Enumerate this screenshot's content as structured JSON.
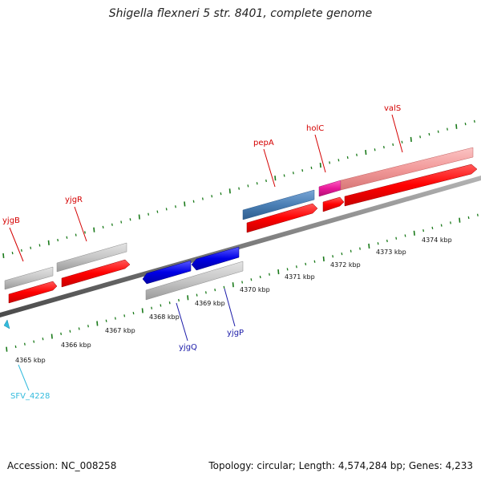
{
  "title": "Shigella flexneri 5 str. 8401, complete genome",
  "footer": {
    "accession": "Accession: NC_008258",
    "summary": "Topology: circular; Length: 4,574,284 bp; Genes: 4,233"
  },
  "axis": {
    "ticks": [
      "4365 kbp",
      "4366 kbp",
      "4367 kbp",
      "4368 kbp",
      "4369 kbp",
      "4370 kbp",
      "4371 kbp",
      "4372 kbp",
      "4373 kbp",
      "4374 kbp"
    ]
  },
  "genes": [
    {
      "name": "yjgB",
      "color": "#d40000"
    },
    {
      "name": "yjgR",
      "color": "#d40000"
    },
    {
      "name": "pepA",
      "color": "#d40000"
    },
    {
      "name": "holC",
      "color": "#d40000"
    },
    {
      "name": "valS",
      "color": "#d40000"
    },
    {
      "name": "yjgQ",
      "color": "#1a1aa8"
    },
    {
      "name": "yjgP",
      "color": "#1a1aa8"
    },
    {
      "name": "SFV_4228",
      "color": "#33bbdd"
    }
  ],
  "colors": {
    "cds": "#ff0000",
    "gene_gray": "#c8c8c8",
    "reverse_blue": "#0000e0",
    "pepA_blue": "#4a7fb5",
    "valS_pink": "#f4a0a0",
    "holC_magenta": "#e8189a",
    "backbone": "#808080",
    "tick_green": "#1a7a1a"
  }
}
